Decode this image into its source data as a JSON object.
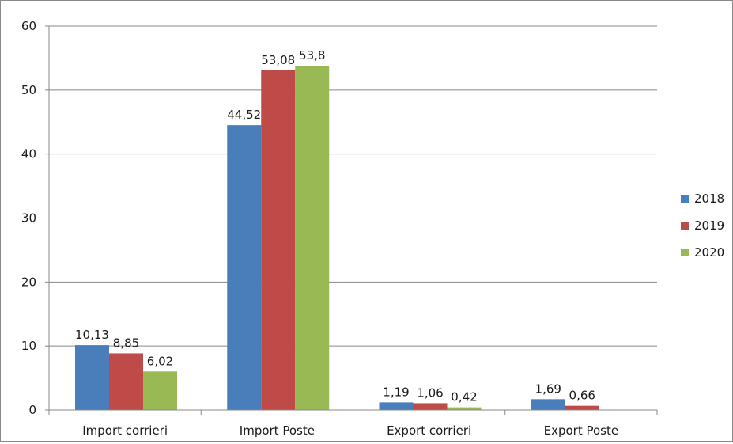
{
  "chart_data": {
    "type": "bar",
    "categories": [
      "Import corrieri",
      "Import Poste",
      "Export corrieri",
      "Export Poste"
    ],
    "series": [
      {
        "name": "2018",
        "values": [
          10.13,
          44.52,
          1.19,
          1.69
        ],
        "labels": [
          "10,13",
          "44,52",
          "1,19",
          "1,69"
        ],
        "color": "#4a7ebb"
      },
      {
        "name": "2019",
        "values": [
          8.85,
          53.08,
          1.06,
          0.66
        ],
        "labels": [
          "8,85",
          "53,08",
          "1,06",
          "0,66"
        ],
        "color": "#be4b48"
      },
      {
        "name": "2020",
        "values": [
          6.02,
          53.8,
          0.42,
          null
        ],
        "labels": [
          "6,02",
          "53,8",
          "0,42",
          null
        ],
        "color": "#98b954"
      }
    ],
    "ylim": [
      0,
      60
    ],
    "yticks": [
      0,
      10,
      20,
      30,
      40,
      50,
      60
    ],
    "grid": true,
    "legend": "right",
    "gridline_color": "#888888",
    "axis_color": "#888888"
  }
}
